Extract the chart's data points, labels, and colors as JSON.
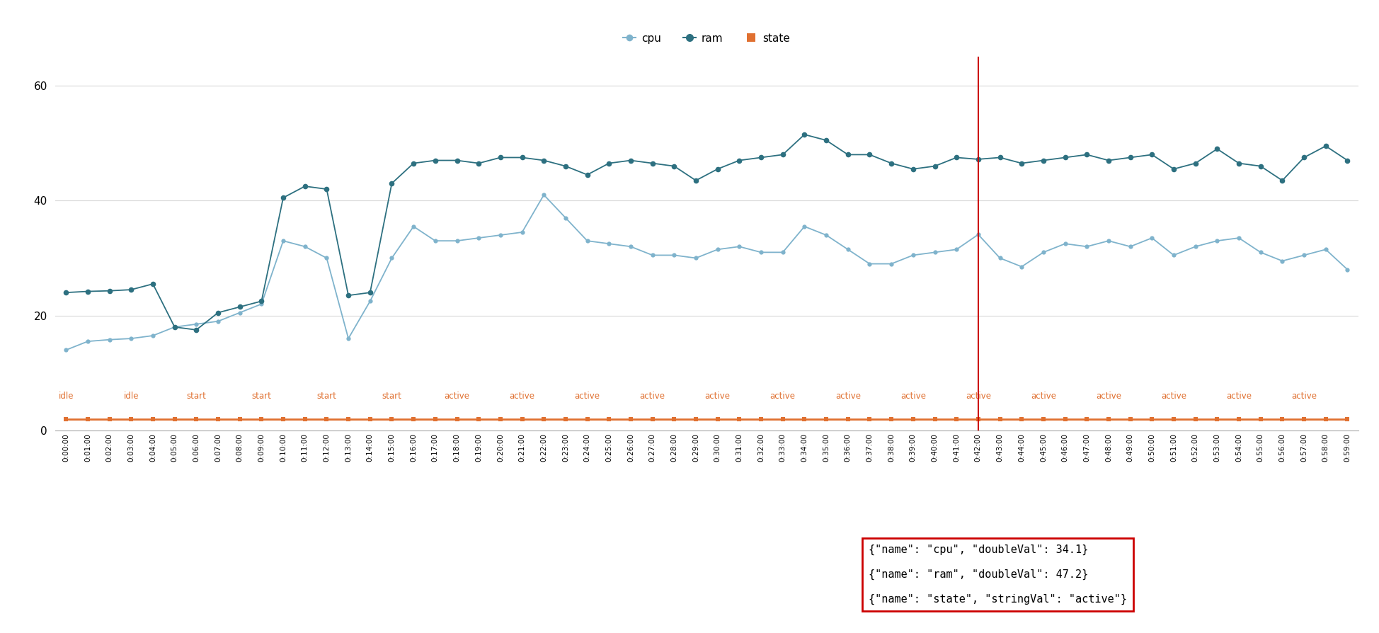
{
  "cpu": [
    14.0,
    15.5,
    15.8,
    16.0,
    16.5,
    18.0,
    18.5,
    19.0,
    20.5,
    22.0,
    33.0,
    32.0,
    30.0,
    16.0,
    22.5,
    30.0,
    35.5,
    33.0,
    33.0,
    33.5,
    34.0,
    34.5,
    41.0,
    37.0,
    33.0,
    32.5,
    32.0,
    30.5,
    30.5,
    30.0,
    31.5,
    32.0,
    31.0,
    31.0,
    35.5,
    34.0,
    31.5,
    29.0,
    29.0,
    30.5,
    31.0,
    31.5,
    34.1,
    30.0,
    28.5,
    31.0,
    32.5,
    32.0,
    33.0,
    32.0,
    33.5,
    30.5,
    32.0,
    33.0,
    33.5,
    31.0,
    29.5,
    30.5,
    31.5,
    28.0
  ],
  "ram": [
    24.0,
    24.2,
    24.3,
    24.5,
    25.5,
    18.0,
    17.5,
    20.5,
    21.5,
    22.5,
    40.5,
    42.5,
    42.0,
    23.5,
    24.0,
    43.0,
    46.5,
    47.0,
    47.0,
    46.5,
    47.5,
    47.5,
    47.0,
    46.0,
    44.5,
    46.5,
    47.0,
    46.5,
    46.0,
    43.5,
    45.5,
    47.0,
    47.5,
    48.0,
    51.5,
    50.5,
    48.0,
    48.0,
    46.5,
    45.5,
    46.0,
    47.5,
    47.2,
    47.5,
    46.5,
    47.0,
    47.5,
    48.0,
    47.0,
    47.5,
    48.0,
    45.5,
    46.5,
    49.0,
    46.5,
    46.0,
    43.5,
    47.5,
    49.5,
    47.0
  ],
  "state_val": [
    2.0,
    2.0,
    2.0,
    2.0,
    2.0,
    2.0,
    2.0,
    2.0,
    2.0,
    2.0,
    2.0,
    2.0,
    2.0,
    2.0,
    2.0,
    2.0,
    2.0,
    2.0,
    2.0,
    2.0,
    2.0,
    2.0,
    2.0,
    2.0,
    2.0,
    2.0,
    2.0,
    2.0,
    2.0,
    2.0,
    2.0,
    2.0,
    2.0,
    2.0,
    2.0,
    2.0,
    2.0,
    2.0,
    2.0,
    2.0,
    2.0,
    2.0,
    2.0,
    2.0,
    2.0,
    2.0,
    2.0,
    2.0,
    2.0,
    2.0,
    2.0,
    2.0,
    2.0,
    2.0,
    2.0,
    2.0,
    2.0,
    2.0,
    2.0,
    2.0
  ],
  "state_labels": [
    "idle",
    "idle",
    "idle",
    "idle",
    "idle",
    "start",
    "start",
    "start",
    "start",
    "start",
    "start",
    "start",
    "start",
    "start",
    "start",
    "start",
    "active",
    "active",
    "active",
    "active",
    "active",
    "active",
    "active",
    "active",
    "active",
    "active",
    "active",
    "active",
    "active",
    "active",
    "active",
    "active",
    "active",
    "active",
    "active",
    "active",
    "active",
    "active",
    "active",
    "active",
    "active",
    "active",
    "active",
    "active",
    "active",
    "active",
    "active",
    "active",
    "active",
    "active",
    "active",
    "active",
    "active",
    "active",
    "active",
    "active",
    "active",
    "active",
    "active",
    "active"
  ],
  "cpu_color": "#7fb3cc",
  "ram_color": "#2d7080",
  "state_color": "#e07030",
  "vline_x": 42,
  "vline_color": "#cc0000",
  "ylim": [
    0,
    65
  ],
  "yticks": [
    0,
    20,
    40,
    60
  ],
  "bg_color": "#ffffff",
  "grid_color": "#d8d8d8"
}
